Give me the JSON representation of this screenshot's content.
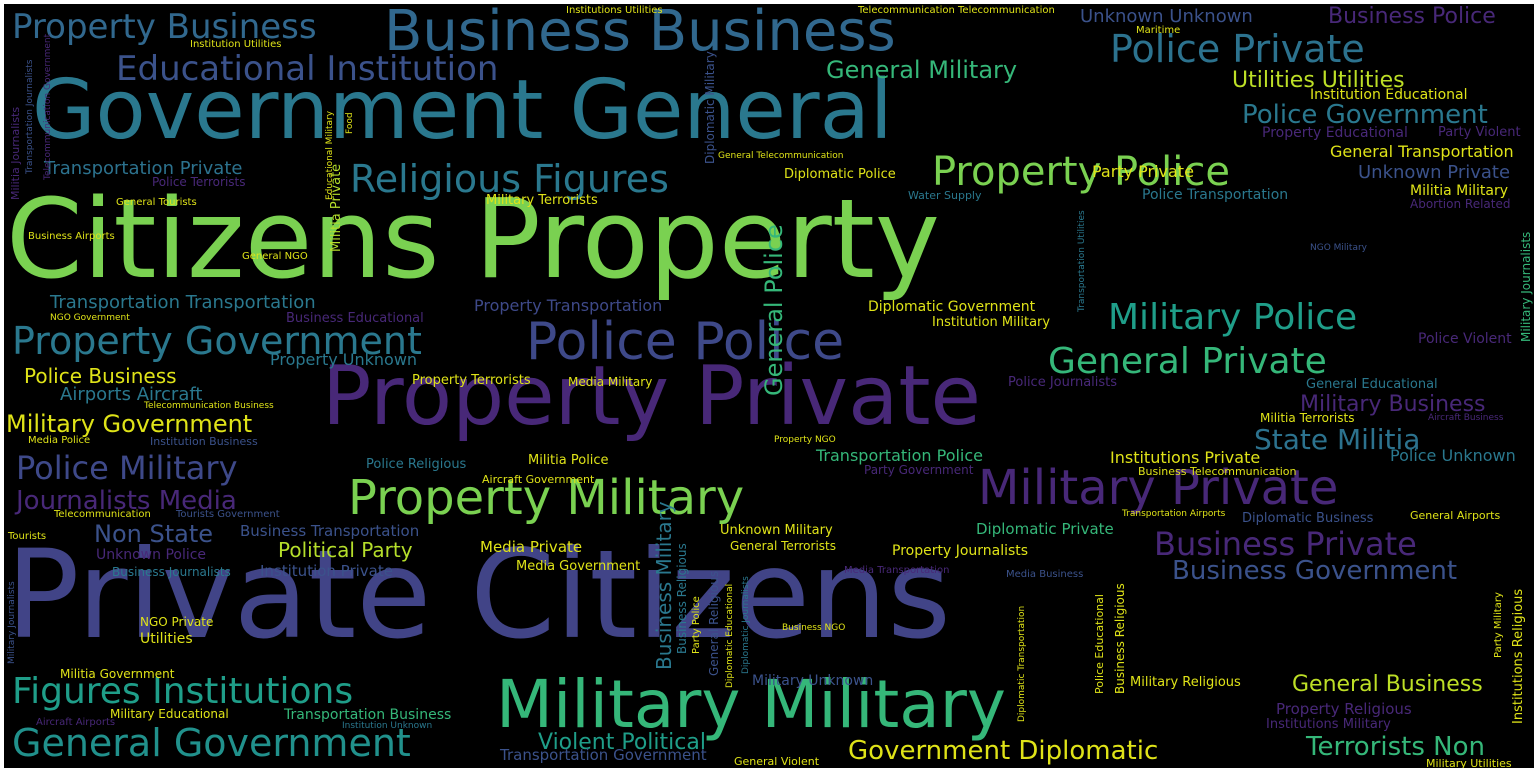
{
  "palette": {
    "background": "#000000",
    "yellow": "#dfe318",
    "lightgreen": "#7ad151",
    "green": "#35b779",
    "teal": "#23a983",
    "cyan": "#2a788e",
    "steel": "#3b528b",
    "indigo": "#443983",
    "purple": "#482878",
    "darkpurple": "#440154"
  },
  "words": [
    {
      "text": "Citizens Property",
      "color": "#7ad151"
    },
    {
      "text": "Private Citizens",
      "color": "#414487"
    },
    {
      "text": "Property Private",
      "color": "#482878"
    },
    {
      "text": "Government General",
      "color": "#2a788e"
    },
    {
      "text": "Military Military",
      "color": "#35b779"
    },
    {
      "text": "Business Business",
      "color": "#31688e"
    },
    {
      "text": "Property Military",
      "color": "#7ad151"
    },
    {
      "text": "Military Private",
      "color": "#482878"
    },
    {
      "text": "Police Police",
      "color": "#3e4989"
    },
    {
      "text": "Property Police",
      "color": "#7ad151"
    },
    {
      "text": "Educational Institution",
      "color": "#3b528b"
    },
    {
      "text": "Religious Figures",
      "color": "#2a788e"
    },
    {
      "text": "Property Government",
      "color": "#2a788e"
    },
    {
      "text": "Figures Institutions",
      "color": "#1f9e89"
    },
    {
      "text": "General Government",
      "color": "#21918c"
    },
    {
      "text": "Police Private",
      "color": "#2c728e"
    },
    {
      "text": "Military Police",
      "color": "#1f9e89"
    },
    {
      "text": "General Private",
      "color": "#35b779"
    },
    {
      "text": "Business Private",
      "color": "#482878"
    },
    {
      "text": "Property Business",
      "color": "#31688e"
    },
    {
      "text": "Police Military",
      "color": "#3e4989"
    },
    {
      "text": "Journalists Media",
      "color": "#482878"
    },
    {
      "text": "Military Government",
      "color": "#dfe318"
    },
    {
      "text": "General Military",
      "color": "#35b779"
    },
    {
      "text": "Utilities Utilities",
      "color": "#bddf26"
    },
    {
      "text": "Police Government",
      "color": "#2a788e"
    },
    {
      "text": "Business Government",
      "color": "#3b528b"
    },
    {
      "text": "Government Diplomatic",
      "color": "#dfe318"
    },
    {
      "text": "State Militia",
      "color": "#2c728e"
    },
    {
      "text": "Military Business",
      "color": "#482878"
    },
    {
      "text": "Terrorists Non",
      "color": "#35b779"
    },
    {
      "text": "General Business",
      "color": "#bddf26"
    },
    {
      "text": "Violent Political",
      "color": "#1f9e89"
    },
    {
      "text": "Non State",
      "color": "#3b528b"
    },
    {
      "text": "Political Party",
      "color": "#b5de2b"
    },
    {
      "text": "Police Business",
      "color": "#dfe318"
    },
    {
      "text": "Airports Aircraft",
      "color": "#2a788e"
    },
    {
      "text": "Transportation Private",
      "color": "#2c728e"
    },
    {
      "text": "Transportation Transportation",
      "color": "#2a788e"
    },
    {
      "text": "Business Police",
      "color": "#482878"
    },
    {
      "text": "Unknown Unknown",
      "color": "#3b528b"
    },
    {
      "text": "Unknown Private",
      "color": "#3b528b"
    },
    {
      "text": "General Transportation",
      "color": "#dfe318"
    },
    {
      "text": "Institution Educational",
      "color": "#dfe318"
    },
    {
      "text": "Property Educational",
      "color": "#482878"
    },
    {
      "text": "Party Violent",
      "color": "#482878"
    },
    {
      "text": "Militia Military",
      "color": "#dfe318"
    },
    {
      "text": "Abortion Related",
      "color": "#482878"
    },
    {
      "text": "Police Transportation",
      "color": "#2a788e"
    },
    {
      "text": "Party Private",
      "color": "#dfe318"
    },
    {
      "text": "Diplomatic Police",
      "color": "#dfe318"
    },
    {
      "text": "Water Supply",
      "color": "#2a788e"
    },
    {
      "text": "Military Terrorists",
      "color": "#dfe318"
    },
    {
      "text": "Diplomatic Government",
      "color": "#dfe318"
    },
    {
      "text": "Institution Military",
      "color": "#dfe318"
    },
    {
      "text": "Property Transportation",
      "color": "#3e4989"
    },
    {
      "text": "Business Educational",
      "color": "#482878"
    },
    {
      "text": "Property Unknown",
      "color": "#2a788e"
    },
    {
      "text": "Property Terrorists",
      "color": "#dfe318"
    },
    {
      "text": "Media Military",
      "color": "#dfe318"
    },
    {
      "text": "Police Violent",
      "color": "#482878"
    },
    {
      "text": "Police Journalists",
      "color": "#482878"
    },
    {
      "text": "General Educational",
      "color": "#2a788e"
    },
    {
      "text": "Militia Terrorists",
      "color": "#dfe318"
    },
    {
      "text": "Aircraft Government",
      "color": "#dfe318"
    },
    {
      "text": "Militia Police",
      "color": "#dfe318"
    },
    {
      "text": "Police Religious",
      "color": "#2a788e"
    },
    {
      "text": "Transportation Police",
      "color": "#35b779"
    },
    {
      "text": "Party Government",
      "color": "#482878"
    },
    {
      "text": "Institutions Private",
      "color": "#dfe318"
    },
    {
      "text": "Business Telecommunication",
      "color": "#dfe318"
    },
    {
      "text": "Police Unknown",
      "color": "#2a788e"
    },
    {
      "text": "Media Private",
      "color": "#dfe318"
    },
    {
      "text": "Media Government",
      "color": "#dfe318"
    },
    {
      "text": "Unknown Military",
      "color": "#dfe318"
    },
    {
      "text": "General Terrorists",
      "color": "#dfe318"
    },
    {
      "text": "Property Journalists",
      "color": "#dfe318"
    },
    {
      "text": "Diplomatic Private",
      "color": "#35b779"
    },
    {
      "text": "Diplomatic Business",
      "color": "#3b528b"
    },
    {
      "text": "General Airports",
      "color": "#dfe318"
    },
    {
      "text": "Business Transportation",
      "color": "#3b528b"
    },
    {
      "text": "Unknown Police",
      "color": "#482878"
    },
    {
      "text": "Institution Private",
      "color": "#3b528b"
    },
    {
      "text": "Business Journalists",
      "color": "#2a788e"
    },
    {
      "text": "NGO Private",
      "color": "#dfe318"
    },
    {
      "text": "Utilities",
      "color": "#dfe318"
    },
    {
      "text": "Militia Government",
      "color": "#dfe318"
    },
    {
      "text": "Military Educational",
      "color": "#dfe318"
    },
    {
      "text": "Transportation Business",
      "color": "#35b779"
    },
    {
      "text": "Transportation Government",
      "color": "#3b528b"
    },
    {
      "text": "General Violent",
      "color": "#dfe318"
    },
    {
      "text": "Military Unknown",
      "color": "#3b528b"
    },
    {
      "text": "Military Religious",
      "color": "#dfe318"
    },
    {
      "text": "Property Religious",
      "color": "#482878"
    },
    {
      "text": "Institutions Military",
      "color": "#482878"
    },
    {
      "text": "Military Utilities",
      "color": "#dfe318"
    },
    {
      "text": "Institution Utilities",
      "color": "#dfe318"
    },
    {
      "text": "Institutions Utilities",
      "color": "#dfe318"
    },
    {
      "text": "Telecommunication Telecommunication",
      "color": "#dfe318"
    },
    {
      "text": "Maritime",
      "color": "#dfe318"
    },
    {
      "text": "Telecommunication",
      "color": "#dfe318"
    },
    {
      "text": "Tourists Government",
      "color": "#3b528b"
    },
    {
      "text": "Tourists",
      "color": "#dfe318"
    },
    {
      "text": "General Tourists",
      "color": "#dfe318"
    },
    {
      "text": "Business Airports",
      "color": "#dfe318"
    },
    {
      "text": "General NGO",
      "color": "#dfe318"
    },
    {
      "text": "NGO Government",
      "color": "#dfe318"
    },
    {
      "text": "Media Police",
      "color": "#dfe318"
    },
    {
      "text": "Institution Business",
      "color": "#3b528b"
    },
    {
      "text": "Police Terrorists",
      "color": "#482878"
    },
    {
      "text": "Property NGO",
      "color": "#dfe318"
    },
    {
      "text": "NGO Military",
      "color": "#3b528b"
    },
    {
      "text": "Business NGO",
      "color": "#dfe318"
    },
    {
      "text": "Media Business",
      "color": "#3b528b"
    },
    {
      "text": "Media Transportation",
      "color": "#482878"
    },
    {
      "text": "Aircraft Airports",
      "color": "#482878"
    },
    {
      "text": "Institution Unknown",
      "color": "#2a788e"
    },
    {
      "text": "Aircraft Business",
      "color": "#482878"
    },
    {
      "text": "General Telecommunication",
      "color": "#dfe318"
    },
    {
      "text": "Transportation Airports",
      "color": "#dfe318"
    },
    {
      "text": "Telecommunication Business",
      "color": "#dfe318"
    },
    {
      "text": "Diplomatic Military",
      "color": "#3b528b"
    },
    {
      "text": "General Police",
      "color": "#35b779"
    },
    {
      "text": "Militia Private",
      "color": "#b5de2b"
    },
    {
      "text": "Militia Journalists",
      "color": "#482878"
    },
    {
      "text": "Food",
      "color": "#dfe318"
    },
    {
      "text": "Business Military",
      "color": "#2a788e"
    },
    {
      "text": "Business Religious",
      "color": "#2a788e"
    },
    {
      "text": "Business Religious",
      "color": "#dfe318"
    },
    {
      "text": "Party Police",
      "color": "#dfe318"
    },
    {
      "text": "General Religious",
      "color": "#3b528b"
    },
    {
      "text": "Diplomatic Educational",
      "color": "#dfe318"
    },
    {
      "text": "Diplomatic Journalists",
      "color": "#2a788e"
    },
    {
      "text": "Diplomatic Transportation",
      "color": "#dfe318"
    },
    {
      "text": "Police Educational",
      "color": "#dfe318"
    },
    {
      "text": "Institutions Religious",
      "color": "#dfe318"
    },
    {
      "text": "Party Military",
      "color": "#dfe318"
    },
    {
      "text": "Transportation Utilities",
      "color": "#2a788e"
    },
    {
      "text": "Military Journalists",
      "color": "#35b779"
    },
    {
      "text": "Military Journalists",
      "color": "#3b528b"
    },
    {
      "text": "Transportation Journalists",
      "color": "#3b528b"
    },
    {
      "text": "Telecommunication Government",
      "color": "#482878"
    },
    {
      "text": "Educational Military",
      "color": "#dfe318"
    }
  ]
}
